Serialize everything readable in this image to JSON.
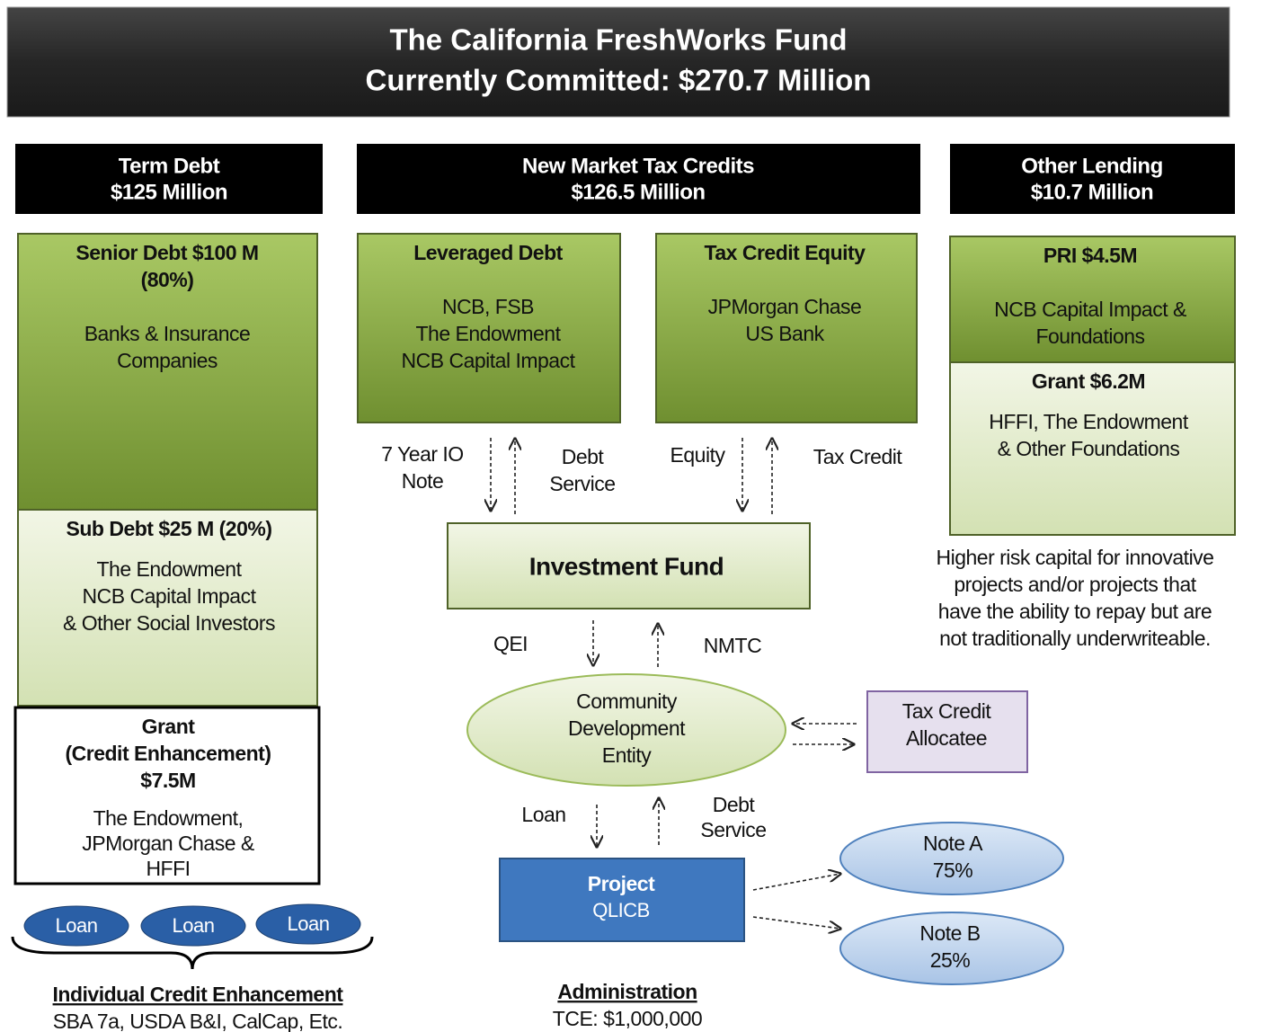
{
  "header": {
    "title": "The California FreshWorks Fund",
    "subtitle": "Currently Committed:  $270.7 Million"
  },
  "columns": [
    {
      "title": "Term Debt",
      "amount": "$125 Million"
    },
    {
      "title": "New Market Tax Credits",
      "amount": "$126.5 Million"
    },
    {
      "title": "Other Lending",
      "amount": "$10.7 Million"
    }
  ],
  "boxes": [
    {
      "heading": [
        "Senior Debt $100 M",
        "(80%)"
      ],
      "body": [
        "Banks & Insurance",
        "Companies"
      ]
    },
    {
      "heading": [
        "Sub Debt $25 M (20%)"
      ],
      "body": [
        "The Endowment",
        "NCB Capital Impact",
        "& Other Social Investors"
      ]
    },
    {
      "heading": [
        "Grant",
        "(Credit Enhancement)",
        "$7.5M"
      ],
      "body": [
        "The Endowment,",
        "JPMorgan Chase &",
        "HFFI"
      ]
    },
    {
      "heading": [
        "Leveraged Debt"
      ],
      "body": [
        "NCB, FSB",
        "The Endowment",
        "NCB Capital Impact"
      ]
    },
    {
      "heading": [
        "Tax Credit Equity"
      ],
      "body": [
        "JPMorgan Chase",
        "US Bank"
      ]
    },
    {
      "heading": [
        "PRI $4.5M"
      ],
      "body": [
        "NCB Capital Impact &",
        "Foundations"
      ]
    },
    {
      "heading": [
        "Grant $6.2M"
      ],
      "body": [
        "HFFI, The Endowment",
        "& Other Foundations"
      ]
    },
    {
      "heading": [
        "Investment Fund"
      ],
      "body": []
    },
    {
      "heading": [],
      "body": [
        "Community",
        "Development",
        "Entity"
      ]
    },
    {
      "heading": [],
      "body": [
        "Tax Credit",
        "Allocatee"
      ]
    },
    {
      "heading": [
        "Project"
      ],
      "body": [
        "QLICB"
      ]
    },
    {
      "heading": [],
      "body": [
        "Note A",
        "75%"
      ]
    },
    {
      "heading": [],
      "body": [
        "Note B",
        "25%"
      ]
    }
  ],
  "loans": [
    "Loan",
    "Loan",
    "Loan"
  ],
  "flows": [
    [
      "7 Year IO",
      "Note"
    ],
    [
      "Debt",
      "Service"
    ],
    [
      "Equity"
    ],
    [
      "Tax Credit"
    ],
    [
      "QEI"
    ],
    [
      "NMTC"
    ],
    [
      "Loan"
    ],
    [
      "Debt",
      "Service"
    ]
  ],
  "note": [
    "Higher risk capital for innovative",
    "projects and/or projects that",
    "have the ability to repay but are",
    "not traditionally underwriteable."
  ],
  "footer_left": {
    "title": "Individual Credit Enhancement",
    "body": "SBA 7a, USDA B&I, CalCap, Etc."
  },
  "footer_center": {
    "title": "Administration",
    "body": "TCE:  $1,000,000"
  }
}
